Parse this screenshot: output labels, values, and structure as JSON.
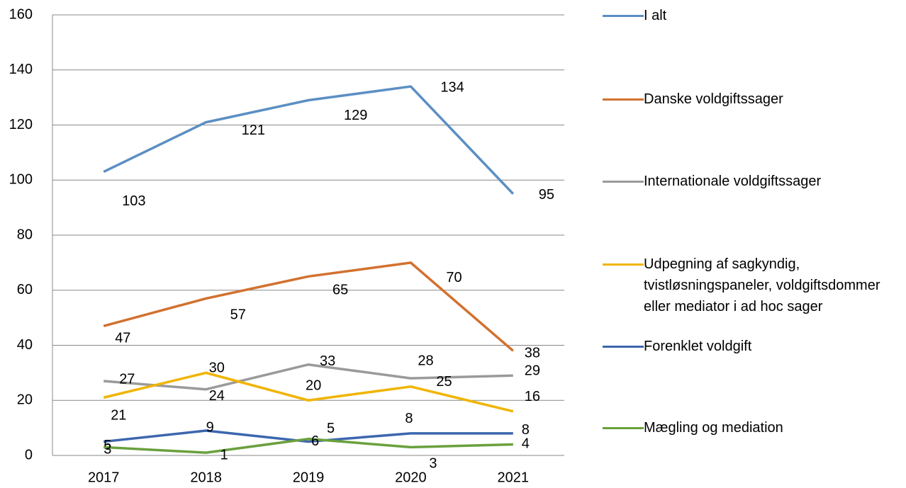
{
  "chart_data": {
    "type": "line",
    "categories": [
      "2017",
      "2018",
      "2019",
      "2020",
      "2021"
    ],
    "series": [
      {
        "name": "I alt",
        "color": "#5b8fc3",
        "values": [
          103,
          121,
          129,
          134,
          95
        ]
      },
      {
        "name": "Danske voldgiftssager",
        "color": "#d2712f",
        "values": [
          47,
          57,
          65,
          70,
          38
        ]
      },
      {
        "name": "Internationale voldgiftssager",
        "color": "#9a9a9a",
        "values": [
          27,
          24,
          33,
          28,
          29
        ]
      },
      {
        "name": "Udpegning af sagkyndig, tvistløsningspaneler, voldgiftsdommer eller mediator i ad hoc sager",
        "color": "#f0b400",
        "values": [
          21,
          30,
          20,
          25,
          16
        ]
      },
      {
        "name": "Forenklet voldgift",
        "color": "#3d66ae",
        "values": [
          5,
          9,
          5,
          8,
          8
        ]
      },
      {
        "name": "Mægling og mediation",
        "color": "#6aa03d",
        "values": [
          3,
          1,
          6,
          3,
          4
        ]
      }
    ],
    "ylim": [
      0,
      160
    ],
    "yticks": [
      0,
      20,
      40,
      60,
      80,
      100,
      120,
      140,
      160
    ],
    "grid": true,
    "legend": "right"
  }
}
